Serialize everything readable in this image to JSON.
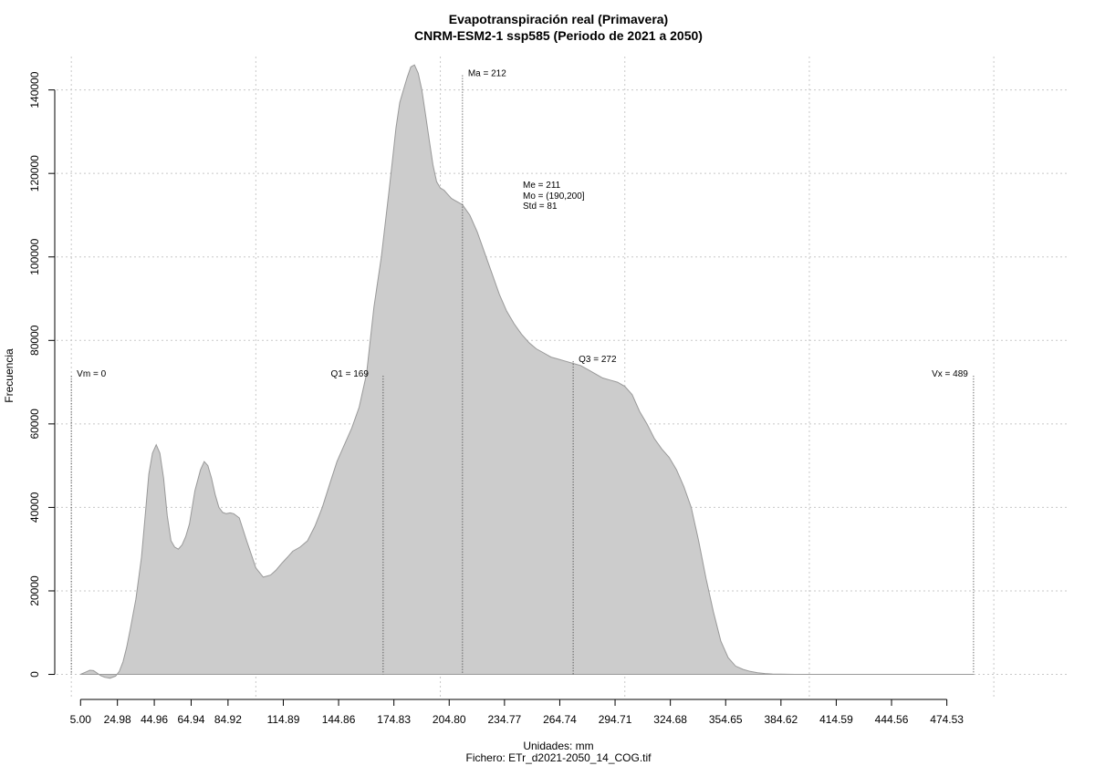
{
  "chart_data": {
    "type": "area",
    "title": "Evapotranspiración real (Primavera)",
    "subtitle": "CNRM-ESM2-1 ssp585 (Periodo de 2021 a 2050)",
    "xlabel": "Unidades: mm",
    "footer": "Fichero: ETr_d2021-2050_14_COG.tif",
    "ylabel": "Frecuencia",
    "xlim": [
      -8,
      540
    ],
    "ylim": [
      -6000,
      148000
    ],
    "x_ticks": [
      5.0,
      24.98,
      44.96,
      64.94,
      84.92,
      114.89,
      144.86,
      174.83,
      204.8,
      234.77,
      264.74,
      294.71,
      324.68,
      354.65,
      384.62,
      414.59,
      444.56,
      474.53
    ],
    "x_tick_labels": [
      "5.00",
      "24.98",
      "44.96",
      "64.94",
      "84.92",
      "114.89",
      "144.86",
      "174.83",
      "204.80",
      "234.77",
      "264.74",
      "294.71",
      "324.68",
      "354.65",
      "384.62",
      "414.59",
      "444.56",
      "474.53"
    ],
    "y_ticks": [
      0,
      20000,
      40000,
      60000,
      80000,
      100000,
      120000,
      140000
    ],
    "y_tick_labels": [
      "0",
      "20000",
      "40000",
      "60000",
      "80000",
      "100000",
      "120000",
      "140000"
    ],
    "grid": true,
    "fill_color": "#cccccc",
    "outline_color": "#999999",
    "series": [
      {
        "x": [
          5,
          8,
          10,
          12,
          14,
          16,
          18,
          21,
          24,
          26,
          28,
          30,
          32,
          35,
          38,
          40,
          42,
          44,
          46,
          48,
          50,
          52,
          54,
          56,
          58,
          60,
          62,
          64,
          67,
          70,
          72,
          74,
          76,
          78,
          80,
          82,
          84,
          86,
          88,
          91,
          95,
          100,
          104,
          108,
          111,
          114,
          117,
          120,
          124,
          128,
          132,
          136,
          140,
          144,
          148,
          152,
          156,
          160,
          164,
          168,
          172,
          174,
          176,
          178,
          180,
          182,
          184,
          186,
          188,
          190,
          192,
          194,
          196,
          198,
          200,
          202,
          204,
          206,
          208,
          210,
          212,
          216,
          220,
          224,
          228,
          232,
          236,
          240,
          244,
          248,
          252,
          256,
          260,
          264,
          268,
          272,
          276,
          280,
          284,
          288,
          292,
          296,
          300,
          304,
          308,
          312,
          316,
          320,
          324,
          328,
          332,
          336,
          340,
          344,
          348,
          352,
          356,
          360,
          364,
          368,
          372,
          376,
          380,
          384,
          388,
          392,
          398,
          405,
          420,
          450,
          480,
          489
        ],
        "y": [
          0,
          600,
          1000,
          900,
          300,
          -300,
          -700,
          -900,
          -400,
          700,
          3000,
          6500,
          11000,
          18000,
          28000,
          38000,
          48000,
          53000,
          55000,
          53000,
          47000,
          38000,
          32000,
          30500,
          30000,
          31000,
          33000,
          36000,
          44000,
          49000,
          51000,
          50000,
          47000,
          43000,
          40000,
          38800,
          38500,
          38700,
          38500,
          37500,
          32000,
          25500,
          23300,
          23800,
          25000,
          26600,
          28000,
          29500,
          30500,
          32000,
          35500,
          40000,
          45500,
          51000,
          55000,
          59000,
          64000,
          72000,
          88000,
          100000,
          115000,
          123000,
          131000,
          137000,
          140000,
          143000,
          145500,
          146000,
          144000,
          140000,
          134000,
          128000,
          122000,
          118000,
          116500,
          116000,
          115000,
          114000,
          113500,
          113000,
          112500,
          110000,
          106000,
          101000,
          96000,
          91000,
          87000,
          84000,
          81500,
          79500,
          78000,
          77000,
          76000,
          75500,
          75000,
          74500,
          74000,
          73000,
          72000,
          71000,
          70500,
          70000,
          69000,
          67000,
          63000,
          60000,
          56500,
          54000,
          52000,
          49000,
          45000,
          40000,
          32000,
          23000,
          15000,
          8000,
          4000,
          2000,
          1200,
          700,
          400,
          200,
          100,
          50,
          20,
          0,
          0,
          0,
          0,
          0,
          0,
          0
        ]
      }
    ],
    "annotations": [
      {
        "label": "Vm = 0",
        "x": 0,
        "y_top": 71500
      },
      {
        "label": "Q1 = 169",
        "x": 169,
        "y_top": 71500
      },
      {
        "label": "Ma = 212",
        "x": 212,
        "y_top": 143500
      },
      {
        "label": "Q3 = 272",
        "x": 272,
        "y_top": 75000
      },
      {
        "label": "Vx = 489",
        "x": 489,
        "y_top": 71500
      }
    ],
    "stats": {
      "median": "Me = 211",
      "mode": "Mo = (190,200]",
      "std": "Std = 81"
    }
  }
}
